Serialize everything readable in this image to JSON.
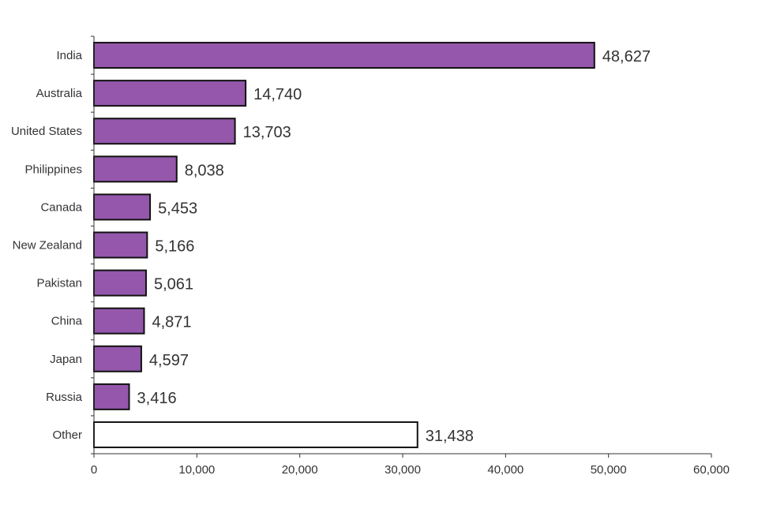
{
  "chart_data": {
    "type": "bar",
    "orientation": "horizontal",
    "title": "",
    "xlabel": "",
    "ylabel": "",
    "xlim": [
      0,
      60000
    ],
    "x_ticks": [
      0,
      10000,
      20000,
      30000,
      40000,
      50000,
      60000
    ],
    "x_tick_labels": [
      "0",
      "10,000",
      "20,000",
      "30,000",
      "40,000",
      "50,000",
      "60,000"
    ],
    "grid": false,
    "categories": [
      "India",
      "Australia",
      "United States",
      "Philippines",
      "Canada",
      "New Zealand",
      "Pakistan",
      "China",
      "Japan",
      "Russia",
      "Other"
    ],
    "values": [
      48627,
      14740,
      13703,
      8038,
      5453,
      5166,
      5061,
      4871,
      4597,
      3416,
      31438
    ],
    "value_labels": [
      "48,627",
      "14,740",
      "13,703",
      "8,038",
      "5,453",
      "5,166",
      "5,061",
      "4,871",
      "4,597",
      "3,416",
      "31,438"
    ],
    "colors": {
      "default": "#9457ab",
      "Other": "#ffffff",
      "outline": "#111111",
      "axis": "#333333",
      "text": "#333333"
    }
  }
}
